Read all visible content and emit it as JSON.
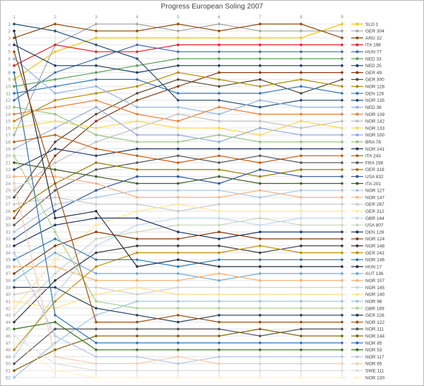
{
  "chart_data": {
    "type": "line",
    "subtype": "bump-rank-progress",
    "title": "Progress European Soling 2007",
    "xlabel": "",
    "ylabel": "",
    "x_axis_position": "top",
    "y_axis_inverted": true,
    "grid": true,
    "legend_position": "right",
    "x_ticks": [
      1,
      2,
      3,
      4,
      5,
      6,
      7,
      8,
      9
    ],
    "y_ticks": [
      1,
      2,
      3,
      4,
      5,
      6,
      7,
      8,
      9,
      10,
      11,
      12,
      13,
      14,
      15,
      16,
      17,
      18,
      19,
      20,
      21,
      22,
      23,
      24,
      25,
      26,
      27,
      28,
      29,
      30,
      31,
      32,
      33,
      34,
      35,
      36,
      37,
      38,
      39,
      40,
      41,
      42,
      43,
      44,
      45,
      46,
      47,
      48,
      49,
      50,
      51,
      52
    ],
    "xlim": [
      1,
      9
    ],
    "ylim": [
      1,
      52
    ],
    "series": [
      {
        "name": "SLO 1",
        "color": "#F2C500",
        "values": [
          9,
          5,
          3,
          3,
          3,
          3,
          3,
          3,
          1
        ]
      },
      {
        "name": "GER 304",
        "color": "#A6A6A6",
        "values": [
          17,
          4,
          1,
          1,
          2,
          1,
          2,
          2,
          2
        ]
      },
      {
        "name": "ARG 32",
        "color": "#8C4A0E",
        "values": [
          3,
          1,
          2,
          2,
          1,
          2,
          1,
          1,
          3
        ]
      },
      {
        "name": "ITA 198",
        "color": "#E8212D",
        "values": [
          7,
          4,
          5,
          5,
          4,
          4,
          4,
          4,
          4
        ]
      },
      {
        "name": "HUN 77",
        "color": "#3F6DB3",
        "values": [
          12,
          8,
          6,
          4,
          5,
          5,
          5,
          5,
          5
        ]
      },
      {
        "name": "NED 33",
        "color": "#57A055",
        "values": [
          10,
          9,
          8,
          7,
          6,
          6,
          6,
          6,
          6
        ]
      },
      {
        "name": "NED 25",
        "color": "#1F3A64",
        "values": [
          4,
          7,
          7,
          8,
          7,
          7,
          7,
          7,
          7
        ]
      },
      {
        "name": "GER 49",
        "color": "#8A3A12",
        "values": [
          29,
          20,
          15,
          12,
          10,
          8,
          8,
          8,
          8
        ]
      },
      {
        "name": "GER 300",
        "color": "#4D4B33",
        "values": [
          26,
          18,
          14,
          11,
          9,
          10,
          9,
          11,
          9
        ]
      },
      {
        "name": "NOR 128",
        "color": "#B08C00",
        "values": [
          15,
          12,
          11,
          10,
          8,
          9,
          10,
          9,
          10
        ]
      },
      {
        "name": "DEN 126",
        "color": "#2E75B6",
        "values": [
          11,
          10,
          9,
          9,
          11,
          11,
          11,
          10,
          11
        ]
      },
      {
        "name": "NOR 135",
        "color": "#1F4E79",
        "values": [
          1,
          2,
          4,
          6,
          12,
          12,
          13,
          12,
          12
        ]
      },
      {
        "name": "NED 38",
        "color": "#8EB4E3",
        "values": [
          6,
          11,
          10,
          13,
          13,
          14,
          12,
          13,
          13
        ]
      },
      {
        "name": "NOR 139",
        "color": "#ED7D31",
        "values": [
          14,
          13,
          12,
          14,
          15,
          13,
          14,
          14,
          14
        ]
      },
      {
        "name": "NOR 142",
        "color": "#BFBFBF",
        "values": [
          25,
          21,
          18,
          16,
          14,
          15,
          15,
          16,
          15
        ]
      },
      {
        "name": "NOR 133",
        "color": "#FFD34D",
        "values": [
          16,
          15,
          16,
          15,
          16,
          16,
          17,
          15,
          16
        ]
      },
      {
        "name": "NOR 100",
        "color": "#8FAADC",
        "values": [
          19,
          16,
          13,
          17,
          17,
          18,
          16,
          17,
          17
        ]
      },
      {
        "name": "BRA 78",
        "color": "#93C47D",
        "values": [
          13,
          14,
          17,
          18,
          18,
          17,
          18,
          18,
          18
        ]
      },
      {
        "name": "NOR 141",
        "color": "#203864",
        "values": [
          22,
          19,
          20,
          19,
          19,
          19,
          19,
          19,
          19
        ]
      },
      {
        "name": "ITA 243",
        "color": "#C55A11",
        "values": [
          18,
          17,
          19,
          20,
          21,
          20,
          21,
          20,
          20
        ]
      },
      {
        "name": "FRA 198",
        "color": "#595959",
        "values": [
          30,
          25,
          22,
          21,
          20,
          21,
          20,
          21,
          21
        ]
      },
      {
        "name": "GER 318",
        "color": "#9C7C00",
        "values": [
          28,
          24,
          21,
          22,
          22,
          22,
          23,
          22,
          22
        ]
      },
      {
        "name": "USA 832",
        "color": "#2F5597",
        "values": [
          32,
          28,
          25,
          23,
          23,
          24,
          22,
          23,
          23
        ]
      },
      {
        "name": "ITA 201",
        "color": "#3E5C28",
        "values": [
          21,
          22,
          23,
          24,
          24,
          23,
          24,
          24,
          24
        ]
      },
      {
        "name": "NOR 127",
        "color": "#A8C6E8",
        "values": [
          31,
          27,
          26,
          25,
          25,
          25,
          26,
          25,
          25
        ]
      },
      {
        "name": "NOR 147",
        "color": "#F4B183",
        "values": [
          23,
          23,
          24,
          26,
          26,
          26,
          25,
          26,
          26
        ]
      },
      {
        "name": "GER 267",
        "color": "#C9C9C9",
        "values": [
          27,
          26,
          27,
          27,
          28,
          27,
          27,
          27,
          27
        ]
      },
      {
        "name": "GER 312",
        "color": "#FFE699",
        "values": [
          42,
          35,
          30,
          28,
          27,
          28,
          28,
          28,
          28
        ]
      },
      {
        "name": "GBR 164",
        "color": "#BDD7EE",
        "values": [
          49,
          40,
          33,
          30,
          29,
          29,
          30,
          29,
          29
        ]
      },
      {
        "name": "USA 807",
        "color": "#C7D8BC",
        "values": [
          43,
          37,
          32,
          31,
          30,
          30,
          29,
          30,
          30
        ]
      },
      {
        "name": "DEN 128",
        "color": "#1F3864",
        "values": [
          33,
          30,
          29,
          29,
          31,
          32,
          31,
          31,
          31
        ]
      },
      {
        "name": "NOR 124",
        "color": "#843C0C",
        "values": [
          37,
          33,
          31,
          32,
          32,
          31,
          32,
          32,
          32
        ]
      },
      {
        "name": "NOR 148",
        "color": "#3B3838",
        "values": [
          44,
          38,
          34,
          33,
          33,
          33,
          34,
          33,
          33
        ]
      },
      {
        "name": "GER 243",
        "color": "#BF8F00",
        "values": [
          48,
          41,
          36,
          34,
          34,
          34,
          33,
          34,
          34
        ]
      },
      {
        "name": "NOR 146",
        "color": "#2E75B6",
        "values": [
          35,
          32,
          35,
          35,
          36,
          35,
          35,
          35,
          35
        ]
      },
      {
        "name": "HUN 17",
        "color": "#20303F",
        "values": [
          2,
          29,
          28,
          36,
          35,
          36,
          36,
          36,
          36
        ]
      },
      {
        "name": "AUT 136",
        "color": "#6FA8DC",
        "values": [
          38,
          34,
          37,
          37,
          37,
          38,
          37,
          37,
          37
        ]
      },
      {
        "name": "NOR 107",
        "color": "#F6B26B",
        "values": [
          36,
          36,
          38,
          38,
          38,
          37,
          38,
          38,
          38
        ]
      },
      {
        "name": "NOR 145",
        "color": "#D0D0D0",
        "values": [
          40,
          39,
          39,
          40,
          39,
          39,
          39,
          39,
          39
        ]
      },
      {
        "name": "NOR 140",
        "color": "#FFE08A",
        "values": [
          41,
          42,
          40,
          39,
          40,
          40,
          40,
          40,
          40
        ]
      },
      {
        "name": "NOR 98",
        "color": "#9DC3E6",
        "values": [
          52,
          47,
          43,
          41,
          41,
          41,
          41,
          41,
          41
        ]
      },
      {
        "name": "GBR 169",
        "color": "#A9D18E",
        "values": [
          20,
          31,
          41,
          42,
          42,
          42,
          42,
          42,
          42
        ]
      },
      {
        "name": "GER 228",
        "color": "#26415E",
        "values": [
          39,
          39,
          42,
          43,
          44,
          43,
          43,
          43,
          43
        ]
      },
      {
        "name": "NOR 122",
        "color": "#A14F0E",
        "values": [
          5,
          24,
          44,
          44,
          43,
          44,
          44,
          44,
          44
        ]
      },
      {
        "name": "NOR 111",
        "color": "#525252",
        "values": [
          50,
          45,
          45,
          45,
          45,
          45,
          46,
          45,
          45
        ]
      },
      {
        "name": "NOR 144",
        "color": "#806000",
        "values": [
          51,
          48,
          46,
          46,
          46,
          46,
          45,
          46,
          46
        ]
      },
      {
        "name": "NOR 85",
        "color": "#2E75B6",
        "values": [
          8,
          43,
          47,
          47,
          47,
          47,
          47,
          47,
          47
        ]
      },
      {
        "name": "NOR 53",
        "color": "#38761D",
        "values": [
          45,
          44,
          48,
          48,
          48,
          48,
          48,
          48,
          48
        ]
      },
      {
        "name": "NOR 117",
        "color": "#B4C7E7",
        "values": [
          34,
          46,
          49,
          49,
          50,
          49,
          49,
          49,
          49
        ]
      },
      {
        "name": "NOR 65",
        "color": "#F7CBAC",
        "values": [
          24,
          49,
          50,
          50,
          49,
          50,
          50,
          50,
          50
        ]
      },
      {
        "name": "SWE 111",
        "color": "#DDDDDD",
        "values": [
          46,
          50,
          51,
          51,
          51,
          51,
          51,
          51,
          51
        ]
      },
      {
        "name": "NOR 130",
        "color": "#FFF2CC",
        "values": [
          47,
          51,
          52,
          52,
          52,
          52,
          52,
          52,
          52
        ]
      }
    ]
  },
  "layout_colors": {
    "background": "#ffffff",
    "border": "#b9b9b9",
    "grid_h": "#e4e4e4",
    "grid_v": "#d8d8d8",
    "axis_text": "#8c8c8c",
    "legend_text": "#3f3f3f",
    "title_text": "#404040"
  }
}
